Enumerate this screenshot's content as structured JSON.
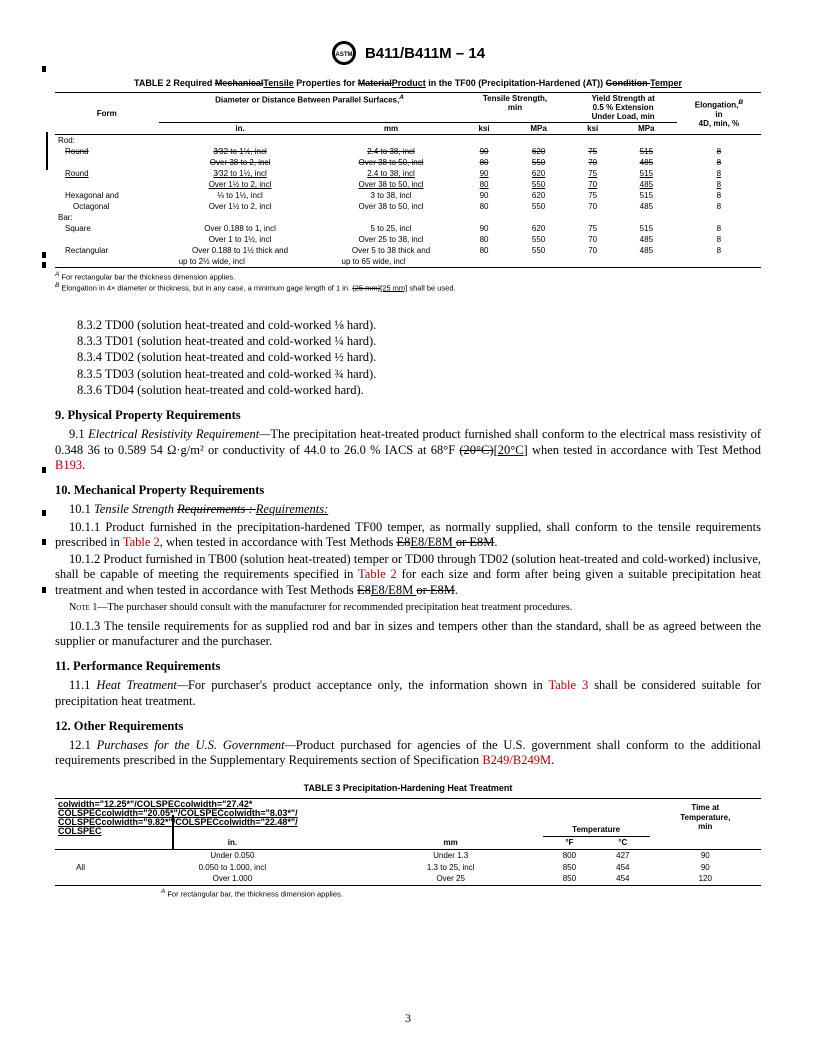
{
  "header": {
    "designation": "B411/B411M – 14"
  },
  "table2": {
    "title_parts": {
      "p1": "TABLE 2 Required ",
      "strike1": "Mechanical",
      "ul1": "Tensile",
      "p2": " Properties for ",
      "strike2": "Material",
      "ul2": "Product",
      "p3": " in the TF00 (Precipitation-Hardened (AT)) ",
      "strike3": "Condition ",
      "ul3": "Temper"
    },
    "head": {
      "form": "Form",
      "diam": "Diameter or Distance Between Parallel Surfaces,",
      "diam_sup": "A",
      "tens": "Tensile Strength,\nmin",
      "yield": "Yield Strength at\n0.5 % Extension\nUnder Load, min",
      "elong": "Elongation,",
      "elong_sup": "B",
      "elong2": "in\n4D, min, %",
      "in": "in.",
      "mm": "mm",
      "ksi": "ksi",
      "mpa": "MPa"
    },
    "sections": {
      "rod": "Rod:",
      "bar": "Bar:"
    },
    "rows": [
      {
        "form": "Round",
        "in": "3⁄32 to 1½, incl",
        "mm": "2.4 to 38, incl",
        "ksi": "90",
        "mpa": "620",
        "yksi": "75",
        "ympa": "515",
        "el": "8",
        "strike": true,
        "indent": true
      },
      {
        "form": "",
        "in": "Over 38 to 2, incl",
        "mm": "Over 38 to 50, incl",
        "ksi": "80",
        "mpa": "550",
        "yksi": "70",
        "ympa": "485",
        "el": "8",
        "strike": true,
        "indent": true
      },
      {
        "form": "Round",
        "in": "3⁄32 to 1½, incl",
        "mm": "2.4 to 38, incl",
        "ksi": "90",
        "mpa": "620",
        "yksi": "75",
        "ympa": "515",
        "el": "8",
        "uline": true,
        "indent": true
      },
      {
        "form": "",
        "in": "Over 1½ to 2, incl",
        "mm": "Over 38 to 50, incl",
        "ksi": "80",
        "mpa": "550",
        "yksi": "70",
        "ympa": "485",
        "el": "8",
        "uline": true,
        "indent": true
      },
      {
        "form": "Hexagonal and",
        "in": "⅛ to 1½, incl",
        "mm": "3 to 38, incl",
        "ksi": "90",
        "mpa": "620",
        "yksi": "75",
        "ympa": "515",
        "el": "8",
        "indent": true
      },
      {
        "form": "Octagonal",
        "in": "Over 1½ to 2, incl",
        "mm": "Over 38 to 50, incl",
        "ksi": "80",
        "mpa": "550",
        "yksi": "70",
        "ympa": "485",
        "el": "8",
        "indent2": true
      }
    ],
    "bar_rows": [
      {
        "form": "Square",
        "in": "Over 0.188 to 1, incl",
        "mm": "5 to 25, incl",
        "ksi": "90",
        "mpa": "620",
        "yksi": "75",
        "ympa": "515",
        "el": "8",
        "indent": true
      },
      {
        "form": "",
        "in": "Over 1 to 1½, incl",
        "mm": "Over 25 to 38, incl",
        "ksi": "80",
        "mpa": "550",
        "yksi": "70",
        "ympa": "485",
        "el": "8",
        "indent": true
      },
      {
        "form": "Rectangular",
        "in": "Over 0.188 to 1½ thick and",
        "mm": "Over 5 to 38 thick and",
        "ksi": "80",
        "mpa": "550",
        "yksi": "70",
        "ympa": "485",
        "el": "8",
        "indent": true
      },
      {
        "form": "",
        "in": "up to 2½ wide, incl",
        "mm": "up to 65 wide, incl",
        "ksi": "",
        "mpa": "",
        "yksi": "",
        "ympa": "",
        "el": "",
        "indent3": true
      }
    ],
    "footnotes": {
      "a_sup": "A",
      "a": " For rectangular bar the thickness dimension applies.",
      "b_sup": "B",
      "b1": " Elongation in 4× diameter or thickness, but in any case, a minimum gage length of 1 in. ",
      "b_strike": "(25 mm)",
      "b_ul": "[25 mm]",
      "b2": " shall be used."
    }
  },
  "body": {
    "list": [
      "8.3.2  TD00 (solution heat-treated and cold-worked ⅛ hard).",
      "8.3.3  TD01 (solution heat-treated and cold-worked ¼ hard).",
      "8.3.4  TD02 (solution heat-treated and cold-worked ½ hard).",
      "8.3.5  TD03 (solution heat-treated and cold-worked ¾ hard).",
      "8.3.6  TD04 (solution heat-treated and cold-worked hard)."
    ],
    "s9h": "9.  Physical Property Requirements",
    "s9p1a": "9.1 ",
    "s9p1i": "Electrical Resistivity Requirement—",
    "s9p1b": "The precipitation heat-treated product furnished shall conform to the electrical mass resistivity of 0.348 36 to 0.589 54 Ω·g/m² or conductivity of 44.0 to 26.0 % IACS at 68°F ",
    "s9p1strike": "(20°C)",
    "s9p1ul": "[20°C]",
    "s9p1c": " when tested in accordance with Test Method ",
    "s9p1link": "B193",
    "s9p1d": ".",
    "s10h": "10.  Mechanical Property Requirements",
    "s10p1a": "10.1 ",
    "s10p1i": "Tensile Strength ",
    "s10p1strike": "Requirements : ",
    "s10p1ul": "Requirements:",
    "s10p11": "10.1.1  Product furnished in the precipitation-hardened TF00 temper, as normally supplied, shall conform to the tensile requirements prescribed in ",
    "s10p11link": "Table 2",
    "s10p11b": ", when tested in accordance with Test Methods ",
    "s10p11strike": "E8",
    "s10p11ul": "E8/E8M ",
    "s10p11strike2": "or E8M",
    "s10p11c": ".",
    "s10p12": "10.1.2  Product furnished in TB00 (solution heat-treated) temper or TD00 through TD02 (solution heat-treated and cold-worked) inclusive, shall be capable of meeting the requirements specified in ",
    "s10p12link": "Table 2",
    "s10p12b": " for each size and form after being given a suitable precipitation heat treatment and when tested in accordance with Test Methods ",
    "s10p12strike": "E8",
    "s10p12ul": "E8/E8M ",
    "s10p12strike2": "or E8M",
    "s10p12c": ".",
    "note1label": "Note 1—",
    "note1": "The purchaser should consult with the manufacturer for recommended precipitation heat treatment procedures.",
    "s10p13": "10.1.3  The tensile requirements for as supplied rod and bar in sizes and tempers other than the standard, shall be as agreed between the supplier or manufacturer and the purchaser.",
    "s11h": "11.  Performance Requirements",
    "s11p1a": "11.1 ",
    "s11p1i": "Heat Treatment—",
    "s11p1b": "For purchaser's product acceptance only, the information shown in ",
    "s11p1link": "Table 3",
    "s11p1c": " shall be considered suitable for precipitation heat treatment.",
    "s12h": "12.  Other Requirements",
    "s12p1a": "12.1 ",
    "s12p1i": "Purchases for the U.S. Government—",
    "s12p1b": "Product purchased for agencies of the U.S. government shall conform to the additional requirements prescribed in the Supplementary Requirements section of Specification ",
    "s12p1link": "B249/B249M",
    "s12p1c": "."
  },
  "table3": {
    "title": "TABLE 3 Precipitation-Hardening Heat Treatment",
    "corrupt": [
      "colwidth=\"12.25*\"/COLSPECcolwidth=\"27.42*",
      "COLSPECcolwidth=\"20.05*\"/COLSPECcolwidth=\"8.03*\"/",
      "COLSPECcolwidth=\"9.82*\"/COLSPECcolwidth=\"22.48*\"/",
      "COLSPEC"
    ],
    "head": {
      "temp": "Temperature",
      "time": "Time at\nTemperature,\nmin",
      "in": "in.",
      "mm": "mm",
      "f": "°F",
      "c": "°C"
    },
    "rows": [
      {
        "a": "",
        "b": "Under 0.050",
        "c": "Under 1.3",
        "d": "800",
        "e": "427",
        "f": "90"
      },
      {
        "a": "All",
        "b": "0.050 to 1.000, incl",
        "c": "1.3 to 25, incl",
        "d": "850",
        "e": "454",
        "f": "90"
      },
      {
        "a": "",
        "b": "Over 1.000",
        "c": "Over 25",
        "d": "850",
        "e": "454",
        "f": "120"
      }
    ],
    "foot_sup": "A",
    "foot": " For rectangular bar, the thickness dimension applies."
  },
  "page": "3",
  "colors": {
    "link": "#b00000"
  }
}
